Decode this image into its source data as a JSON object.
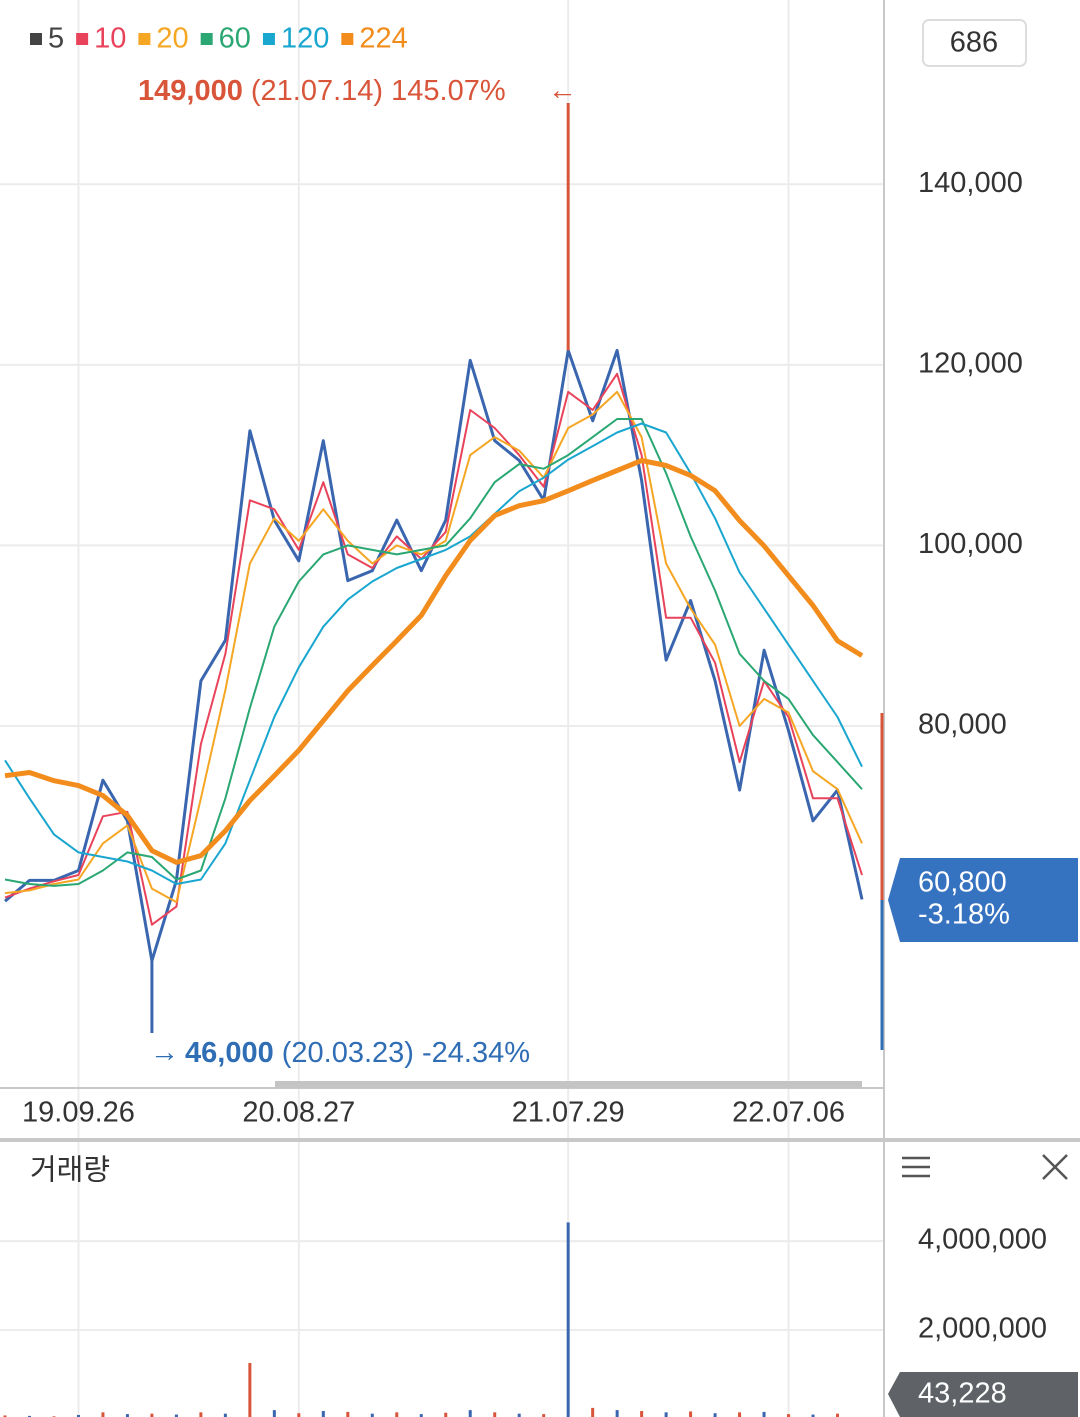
{
  "ui": {
    "count_box": "686"
  },
  "chart_data": [
    {
      "type": "line",
      "categories": [
        null,
        null,
        null,
        "19.09.26",
        null,
        null,
        null,
        null,
        null,
        null,
        null,
        null,
        "20.08.27",
        null,
        null,
        null,
        null,
        null,
        null,
        null,
        null,
        null,
        null,
        "21.07.29",
        null,
        null,
        null,
        null,
        null,
        null,
        null,
        null,
        "22.07.06",
        null,
        null,
        null
      ],
      "series": [
        {
          "name": "5",
          "color": "#444444",
          "values": [
            60600,
            62900,
            62900,
            64000,
            74000,
            69500,
            54000,
            62900,
            85000,
            89500,
            112700,
            102800,
            98300,
            111600,
            96100,
            97200,
            102800,
            97200,
            102800,
            120500,
            111600,
            109400,
            105000,
            121600,
            113800,
            121600,
            107200,
            87300,
            93900,
            85000,
            72900,
            88400,
            79500,
            69500,
            72900,
            60800
          ]
        },
        {
          "name": "10",
          "color": "#e8435a",
          "values": [
            61000,
            62000,
            62800,
            63500,
            70000,
            70500,
            58000,
            60000,
            78000,
            88000,
            105000,
            104000,
            99500,
            107000,
            99000,
            97500,
            101000,
            98500,
            101500,
            115000,
            113000,
            110000,
            106500,
            117000,
            115000,
            119000,
            110000,
            92000,
            92000,
            87000,
            76000,
            85000,
            81000,
            72000,
            72000,
            63500
          ]
        },
        {
          "name": "20",
          "color": "#f5a623",
          "values": [
            61500,
            61800,
            62500,
            63000,
            67000,
            69000,
            62000,
            60500,
            72000,
            84000,
            98000,
            103000,
            100500,
            104000,
            100500,
            98000,
            100000,
            99000,
            100500,
            110000,
            112000,
            110500,
            107500,
            113000,
            114500,
            117000,
            112000,
            98000,
            93000,
            89000,
            80000,
            83000,
            81500,
            75000,
            73000,
            67000
          ]
        },
        {
          "name": "60",
          "color": "#2aa772",
          "values": [
            63000,
            62500,
            62300,
            62500,
            64000,
            66000,
            65500,
            63000,
            64000,
            72000,
            82000,
            91000,
            96000,
            99000,
            100000,
            99500,
            99000,
            99500,
            100000,
            103000,
            107000,
            109000,
            108500,
            110000,
            112000,
            114000,
            114000,
            108000,
            101000,
            95000,
            88000,
            85000,
            83000,
            79000,
            76000,
            73000
          ]
        },
        {
          "name": "120",
          "color": "#19a6cf",
          "values": [
            76200,
            72000,
            68000,
            66000,
            65500,
            65000,
            64000,
            62500,
            63000,
            67000,
            74000,
            81000,
            86500,
            91000,
            94000,
            96000,
            97500,
            98500,
            99500,
            101000,
            103500,
            106000,
            107500,
            109500,
            111000,
            112500,
            113500,
            112500,
            108000,
            103000,
            97000,
            93000,
            89000,
            85000,
            81000,
            75500
          ]
        },
        {
          "name": "224",
          "color": "#f28c1c",
          "values": [
            74500,
            74850,
            73950,
            73400,
            72300,
            70100,
            66200,
            64900,
            65650,
            68400,
            71750,
            74500,
            77300,
            80600,
            83900,
            86700,
            89450,
            92250,
            96650,
            100550,
            103300,
            104400,
            104950,
            106050,
            107200,
            108300,
            109400,
            108850,
            107750,
            106050,
            102750,
            99950,
            96650,
            93350,
            89450,
            87800
          ]
        }
      ],
      "ylim": [
        40800,
        160400
      ],
      "yticks": [
        {
          "value": 80000,
          "label": "80,000"
        },
        {
          "value": 100000,
          "label": "100,000"
        },
        {
          "value": 120000,
          "label": "120,000"
        },
        {
          "value": 140000,
          "label": "140,000"
        }
      ],
      "grid": true,
      "high": {
        "index": 23,
        "value": 149000,
        "label": "149,000",
        "detail": "(21.07.14) 145.07%"
      },
      "low": {
        "index": 6,
        "value": 46000,
        "label": "46,000",
        "detail": "(20.03.23) -24.34%"
      },
      "current": {
        "value": 60800,
        "label": "60,800",
        "change": "-3.18%"
      }
    },
    {
      "type": "bar",
      "title": "거래량",
      "color": "#d9553a",
      "values": [
        80000,
        70000,
        60000,
        90000,
        150000,
        110000,
        120000,
        100000,
        150000,
        120000,
        1260000,
        200000,
        130000,
        180000,
        160000,
        120000,
        150000,
        110000,
        140000,
        200000,
        150000,
        120000,
        110000,
        4420000,
        250000,
        200000,
        180000,
        150000,
        170000,
        130000,
        150000,
        160000,
        110000,
        100000,
        120000,
        43228
      ],
      "value_labels": [
        null,
        null,
        null,
        null,
        null,
        null,
        null,
        null,
        null,
        null,
        null,
        null,
        null,
        null,
        null,
        null,
        null,
        null,
        null,
        null,
        null,
        null,
        null,
        null,
        null,
        null,
        null,
        null,
        null,
        null,
        null,
        null,
        null,
        null,
        null,
        "43,228"
      ],
      "ylim": [
        0,
        6160000
      ],
      "yticks": [
        {
          "value": 2000000,
          "label": "2,000,000"
        },
        {
          "value": 4000000,
          "label": "4,000,000"
        }
      ],
      "grid": true
    }
  ]
}
